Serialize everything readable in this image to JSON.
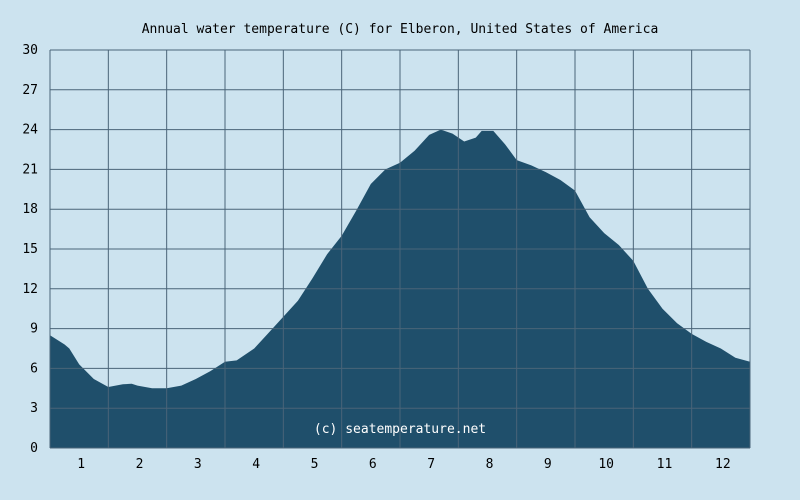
{
  "chart_data": {
    "type": "area",
    "title": "Annual water temperature (C) for Elberon, United States of America",
    "xlabel": "",
    "ylabel": "",
    "x_tick_labels": [
      "1",
      "2",
      "3",
      "4",
      "5",
      "6",
      "7",
      "8",
      "9",
      "10",
      "11",
      "12"
    ],
    "y_tick_labels": [
      "0",
      "3",
      "6",
      "9",
      "12",
      "15",
      "18",
      "21",
      "24",
      "27",
      "30"
    ],
    "ylim": [
      0,
      30
    ],
    "xlim": [
      0.5,
      12.5
    ],
    "grid": true,
    "legend": "none",
    "watermark": "(c) seatemperature.net",
    "colors": {
      "background": "#cce3ef",
      "plot_background": "#cce3ef",
      "fill": "#1f4f6b",
      "grid": "#4a6478"
    },
    "x": [
      0.5,
      0.75,
      0.83,
      1.0,
      1.25,
      1.5,
      1.75,
      1.9,
      2.0,
      2.25,
      2.5,
      2.75,
      3.0,
      3.25,
      3.5,
      3.7,
      4.0,
      4.25,
      4.5,
      4.75,
      5.0,
      5.25,
      5.5,
      5.75,
      6.0,
      6.25,
      6.5,
      6.75,
      7.0,
      7.2,
      7.4,
      7.6,
      7.8,
      7.9,
      8.1,
      8.3,
      8.5,
      8.75,
      9.0,
      9.25,
      9.5,
      9.75,
      10.0,
      10.25,
      10.5,
      10.75,
      11.0,
      11.25,
      11.5,
      11.75,
      12.0,
      12.25,
      12.5
    ],
    "y": [
      8.5,
      7.8,
      7.5,
      6.3,
      5.2,
      4.6,
      4.8,
      4.85,
      4.7,
      4.5,
      4.5,
      4.7,
      5.2,
      5.8,
      6.5,
      6.6,
      7.5,
      8.7,
      9.9,
      11.1,
      12.8,
      14.6,
      16.0,
      17.9,
      19.9,
      21.0,
      21.5,
      22.4,
      23.6,
      24.0,
      23.7,
      23.1,
      23.4,
      23.9,
      23.9,
      22.9,
      21.7,
      21.3,
      20.8,
      20.2,
      19.4,
      17.4,
      16.2,
      15.3,
      14.1,
      12.0,
      10.5,
      9.4,
      8.6,
      8.0,
      7.5,
      6.8,
      6.5
    ]
  }
}
